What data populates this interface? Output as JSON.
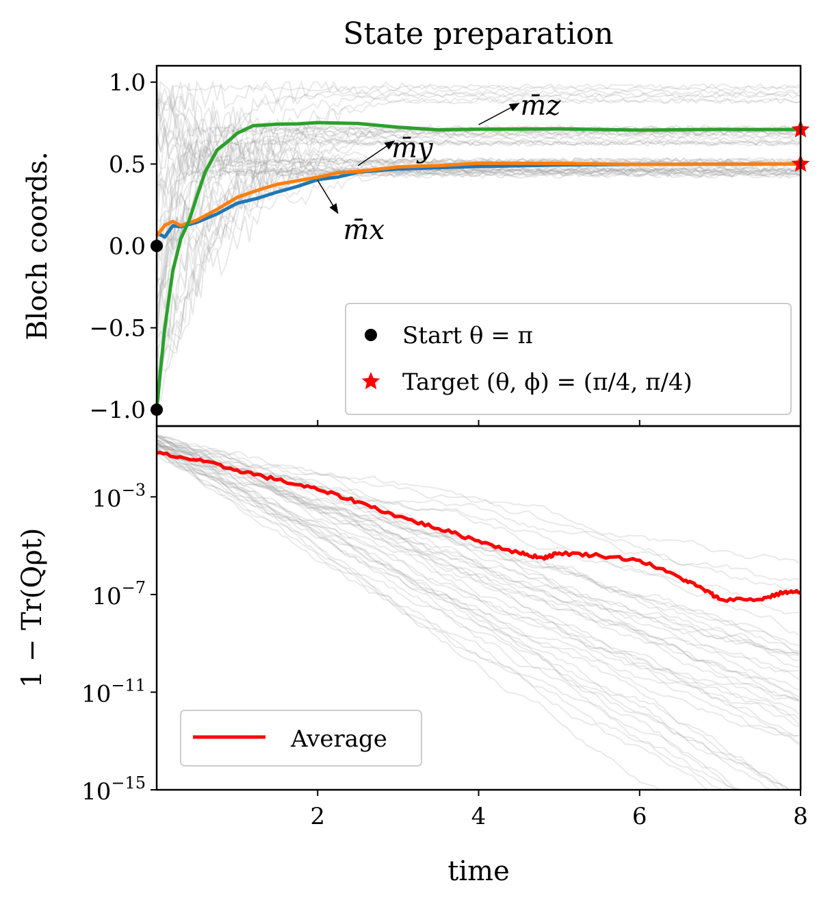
{
  "title": "State preparation",
  "colors": {
    "mx": "#1f77b4",
    "my": "#ff7f0e",
    "mz": "#2ca02c",
    "average": "#ff0000",
    "trajectories": "#999999",
    "start_marker": "#000000",
    "target_marker": "#ff0000"
  },
  "chart_data": [
    {
      "type": "line",
      "panel": "top",
      "title": "State preparation",
      "xlabel": "",
      "ylabel": "Bloch coords.",
      "xlim": [
        0,
        8
      ],
      "ylim": [
        -1.1,
        1.1
      ],
      "yticks": [
        -1.0,
        -0.5,
        0.0,
        0.5,
        1.0
      ],
      "ytick_labels": [
        "−1.0",
        "−0.5",
        "0.0",
        "0.5",
        "1.0"
      ],
      "xticks": [
        2,
        4,
        6,
        8
      ],
      "grid": false,
      "legend_position": "lower-right",
      "series": [
        {
          "name": "m̄x",
          "key": "mx",
          "x": [
            0,
            0.1,
            0.2,
            0.3,
            0.5,
            0.75,
            1.0,
            1.25,
            1.5,
            1.75,
            2.0,
            2.25,
            2.5,
            3.0,
            3.5,
            4.0,
            5.0,
            6.0,
            7.0,
            8.0
          ],
          "y": [
            0.08,
            0.05,
            0.13,
            0.11,
            0.15,
            0.2,
            0.26,
            0.29,
            0.33,
            0.36,
            0.4,
            0.42,
            0.45,
            0.47,
            0.48,
            0.49,
            0.5,
            0.5,
            0.5,
            0.5
          ]
        },
        {
          "name": "m̄y",
          "key": "my",
          "x": [
            0,
            0.1,
            0.2,
            0.3,
            0.5,
            0.75,
            1.0,
            1.25,
            1.5,
            1.75,
            2.0,
            2.25,
            2.5,
            3.0,
            3.5,
            4.0,
            5.0,
            6.0,
            7.0,
            8.0
          ],
          "y": [
            0.06,
            0.12,
            0.15,
            0.13,
            0.16,
            0.22,
            0.29,
            0.34,
            0.37,
            0.4,
            0.42,
            0.44,
            0.46,
            0.48,
            0.49,
            0.5,
            0.5,
            0.5,
            0.5,
            0.5
          ]
        },
        {
          "name": "m̄z",
          "key": "mz",
          "x": [
            0,
            0.05,
            0.1,
            0.2,
            0.3,
            0.4,
            0.5,
            0.6,
            0.75,
            0.9,
            1.0,
            1.2,
            1.5,
            1.75,
            2.0,
            2.5,
            3.0,
            3.5,
            4.0,
            5.0,
            6.0,
            7.0,
            8.0
          ],
          "y": [
            -1.0,
            -0.75,
            -0.5,
            -0.15,
            0.05,
            0.15,
            0.3,
            0.45,
            0.58,
            0.65,
            0.69,
            0.73,
            0.74,
            0.75,
            0.76,
            0.74,
            0.72,
            0.71,
            0.71,
            0.71,
            0.71,
            0.71,
            0.71
          ]
        }
      ],
      "annotations": [
        {
          "text": "m̄z",
          "key": "mz"
        },
        {
          "text": "m̄y",
          "key": "my"
        },
        {
          "text": "m̄x",
          "key": "mx"
        }
      ],
      "start_points": {
        "x": [
          0,
          0
        ],
        "y": [
          0.0,
          -1.0
        ]
      },
      "target_points": {
        "x": [
          8,
          8
        ],
        "y": [
          0.71,
          0.5
        ]
      },
      "legend": [
        {
          "label": "Start θ = π",
          "marker": "circle"
        },
        {
          "label": "Target (θ, ϕ) = (π/4, π/4)",
          "marker": "star"
        }
      ]
    },
    {
      "type": "line",
      "panel": "bottom",
      "xlabel": "time",
      "ylabel": "1 − Tr(Qρt)",
      "xlim": [
        0,
        8
      ],
      "ylim_log10": [
        -15,
        -0.1
      ],
      "log_scale": true,
      "yticks_log10": [
        -3,
        -7,
        -11,
        -15
      ],
      "ytick_labels": [
        {
          "base": "10",
          "exp": "−3"
        },
        {
          "base": "10",
          "exp": "−7"
        },
        {
          "base": "10",
          "exp": "−11"
        },
        {
          "base": "10",
          "exp": "−15"
        }
      ],
      "xticks": [
        2,
        4,
        6,
        8
      ],
      "xtick_labels": [
        "2",
        "4",
        "6",
        "8"
      ],
      "grid": false,
      "legend_position": "lower-left",
      "series": [
        {
          "name": "Average",
          "x": [
            0,
            0.5,
            1.0,
            1.5,
            2.0,
            2.5,
            3.0,
            3.5,
            4.0,
            4.5,
            4.8,
            5.0,
            5.5,
            6.0,
            6.5,
            6.8,
            7.0,
            7.5,
            7.8,
            8.0
          ],
          "log10_y": [
            -1.2,
            -1.5,
            -1.9,
            -2.3,
            -2.7,
            -3.2,
            -3.8,
            -4.3,
            -4.8,
            -5.3,
            -5.5,
            -5.3,
            -5.4,
            -5.6,
            -6.3,
            -6.8,
            -7.2,
            -7.2,
            -6.9,
            -6.9
          ]
        }
      ]
    }
  ]
}
